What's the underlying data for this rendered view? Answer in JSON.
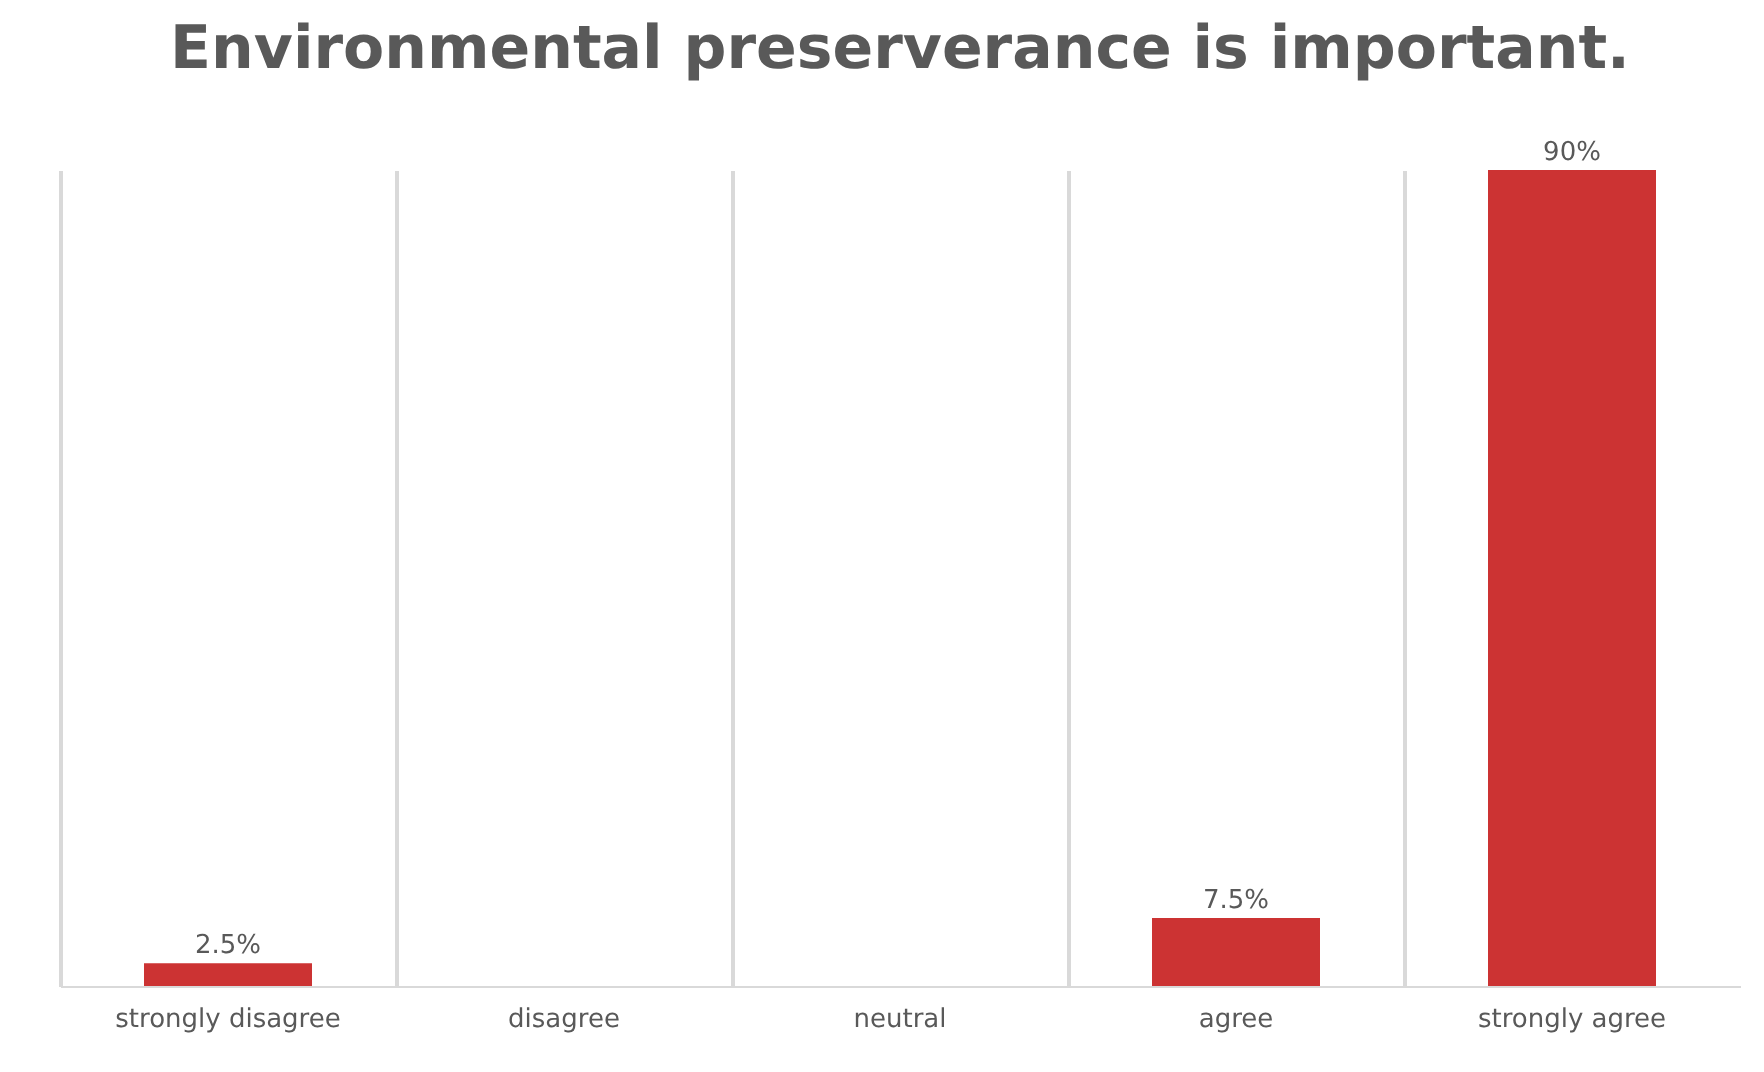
{
  "chart_data": {
    "type": "bar",
    "title": "Environmental preserverance is important.",
    "categories": [
      "strongly disagree",
      "disagree",
      "neutral",
      "agree",
      "strongly agree"
    ],
    "values": [
      2.5,
      0,
      0,
      7.5,
      90
    ],
    "value_labels": [
      "2.5%",
      null,
      null,
      "7.5%",
      "90%"
    ],
    "color": "#cc3333",
    "grid": "x"
  }
}
